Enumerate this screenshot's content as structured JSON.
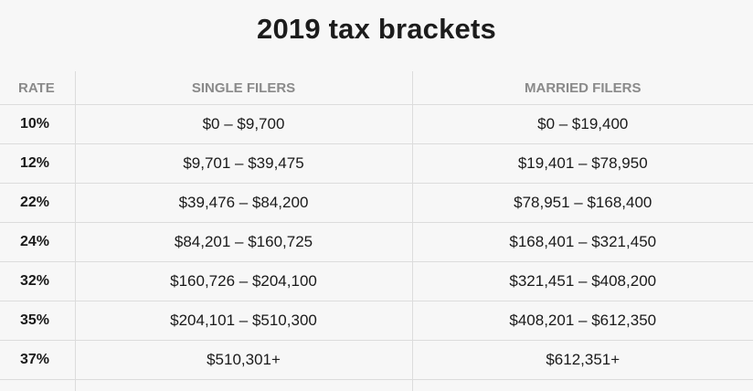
{
  "chart_data": {
    "type": "table",
    "title": "2019 tax brackets",
    "columns": [
      "RATE",
      "SINGLE FILERS",
      "MARRIED FILERS"
    ],
    "rows": [
      {
        "rate": "10%",
        "single": "$0 – $9,700",
        "married": "$0 – $19,400"
      },
      {
        "rate": "12%",
        "single": "$9,701 – $39,475",
        "married": "$19,401 – $78,950"
      },
      {
        "rate": "22%",
        "single": "$39,476 – $84,200",
        "married": "$78,951 – $168,400"
      },
      {
        "rate": "24%",
        "single": "$84,201 – $160,725",
        "married": "$168,401 – $321,450"
      },
      {
        "rate": "32%",
        "single": "$160,726 – $204,100",
        "married": "$321,451 – $408,200"
      },
      {
        "rate": "35%",
        "single": "$204,101 – $510,300",
        "married": "$408,201 – $612,350"
      },
      {
        "rate": "37%",
        "single": "$510,301+",
        "married": "$612,351+"
      }
    ]
  }
}
